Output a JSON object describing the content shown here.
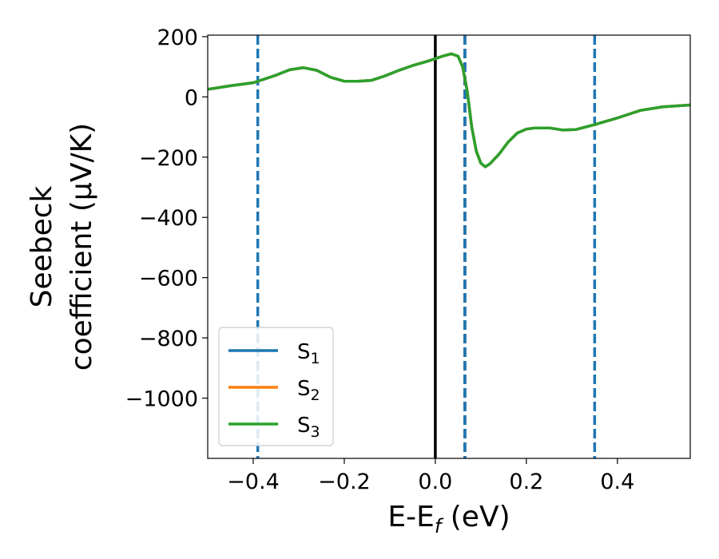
{
  "chart_data": {
    "type": "line",
    "title": "",
    "xlabel": "E-E",
    "xlabel_sub": "f",
    "xlabel_unit": " (eV)",
    "ylabel_line1": "Seebeck",
    "ylabel_line2": "coefficient  (μV/K)",
    "xlim": [
      -0.5,
      0.56
    ],
    "ylim": [
      -1200,
      205
    ],
    "xticks": [
      {
        "v": -0.4,
        "label": "−0.4"
      },
      {
        "v": -0.2,
        "label": "−0.2"
      },
      {
        "v": 0.0,
        "label": "0.0"
      },
      {
        "v": 0.2,
        "label": "0.2"
      },
      {
        "v": 0.4,
        "label": "0.4"
      }
    ],
    "yticks": [
      {
        "v": 200,
        "label": "200"
      },
      {
        "v": 0,
        "label": "0"
      },
      {
        "v": -200,
        "label": "−200"
      },
      {
        "v": -400,
        "label": "−400"
      },
      {
        "v": -600,
        "label": "−600"
      },
      {
        "v": -800,
        "label": "−800"
      },
      {
        "v": -1000,
        "label": "−1000"
      }
    ],
    "x": [
      -0.5,
      -0.45,
      -0.4,
      -0.35,
      -0.32,
      -0.29,
      -0.26,
      -0.23,
      -0.2,
      -0.17,
      -0.14,
      -0.11,
      -0.08,
      -0.05,
      -0.02,
      0.0,
      0.02,
      0.035,
      0.05,
      0.06,
      0.07,
      0.08,
      0.09,
      0.1,
      0.11,
      0.12,
      0.14,
      0.16,
      0.18,
      0.2,
      0.22,
      0.25,
      0.28,
      0.31,
      0.33,
      0.35,
      0.4,
      0.45,
      0.5,
      0.56
    ],
    "series": [
      {
        "name": "S",
        "sub": "1",
        "color": "#1f77b4",
        "values": [
          25,
          37,
          47,
          72,
          90,
          97,
          88,
          65,
          52,
          52,
          55,
          70,
          88,
          104,
          117,
          127,
          137,
          143,
          135,
          100,
          20,
          -100,
          -180,
          -220,
          -232,
          -222,
          -190,
          -150,
          -120,
          -107,
          -103,
          -103,
          -110,
          -108,
          -100,
          -92,
          -70,
          -45,
          -33,
          -27
        ]
      },
      {
        "name": "S",
        "sub": "2",
        "color": "#ff7f0e",
        "values": [
          25,
          37,
          47,
          72,
          90,
          97,
          88,
          65,
          52,
          52,
          55,
          70,
          88,
          104,
          117,
          127,
          137,
          143,
          135,
          100,
          20,
          -100,
          -180,
          -220,
          -232,
          -222,
          -190,
          -150,
          -120,
          -107,
          -103,
          -103,
          -110,
          -108,
          -100,
          -92,
          -70,
          -45,
          -33,
          -27
        ]
      },
      {
        "name": "S",
        "sub": "3",
        "color": "#2ca02c",
        "values": [
          25,
          37,
          47,
          72,
          90,
          97,
          88,
          65,
          52,
          52,
          55,
          70,
          88,
          104,
          117,
          127,
          137,
          143,
          135,
          100,
          20,
          -100,
          -180,
          -220,
          -232,
          -222,
          -190,
          -150,
          -120,
          -107,
          -103,
          -103,
          -110,
          -108,
          -100,
          -92,
          -70,
          -45,
          -33,
          -27
        ]
      }
    ],
    "vlines": [
      {
        "x": -0.39,
        "color": "#1f77b4",
        "style": "dashed"
      },
      {
        "x": 0.0,
        "color": "#000000",
        "style": "solid"
      },
      {
        "x": 0.065,
        "color": "#000000",
        "style": "dashed"
      },
      {
        "x": 0.065,
        "color": "#1f77b4",
        "style": "dashed"
      },
      {
        "x": 0.35,
        "color": "#1f77b4",
        "style": "dashed"
      }
    ],
    "grid": false,
    "legend_position": "lower-left"
  }
}
